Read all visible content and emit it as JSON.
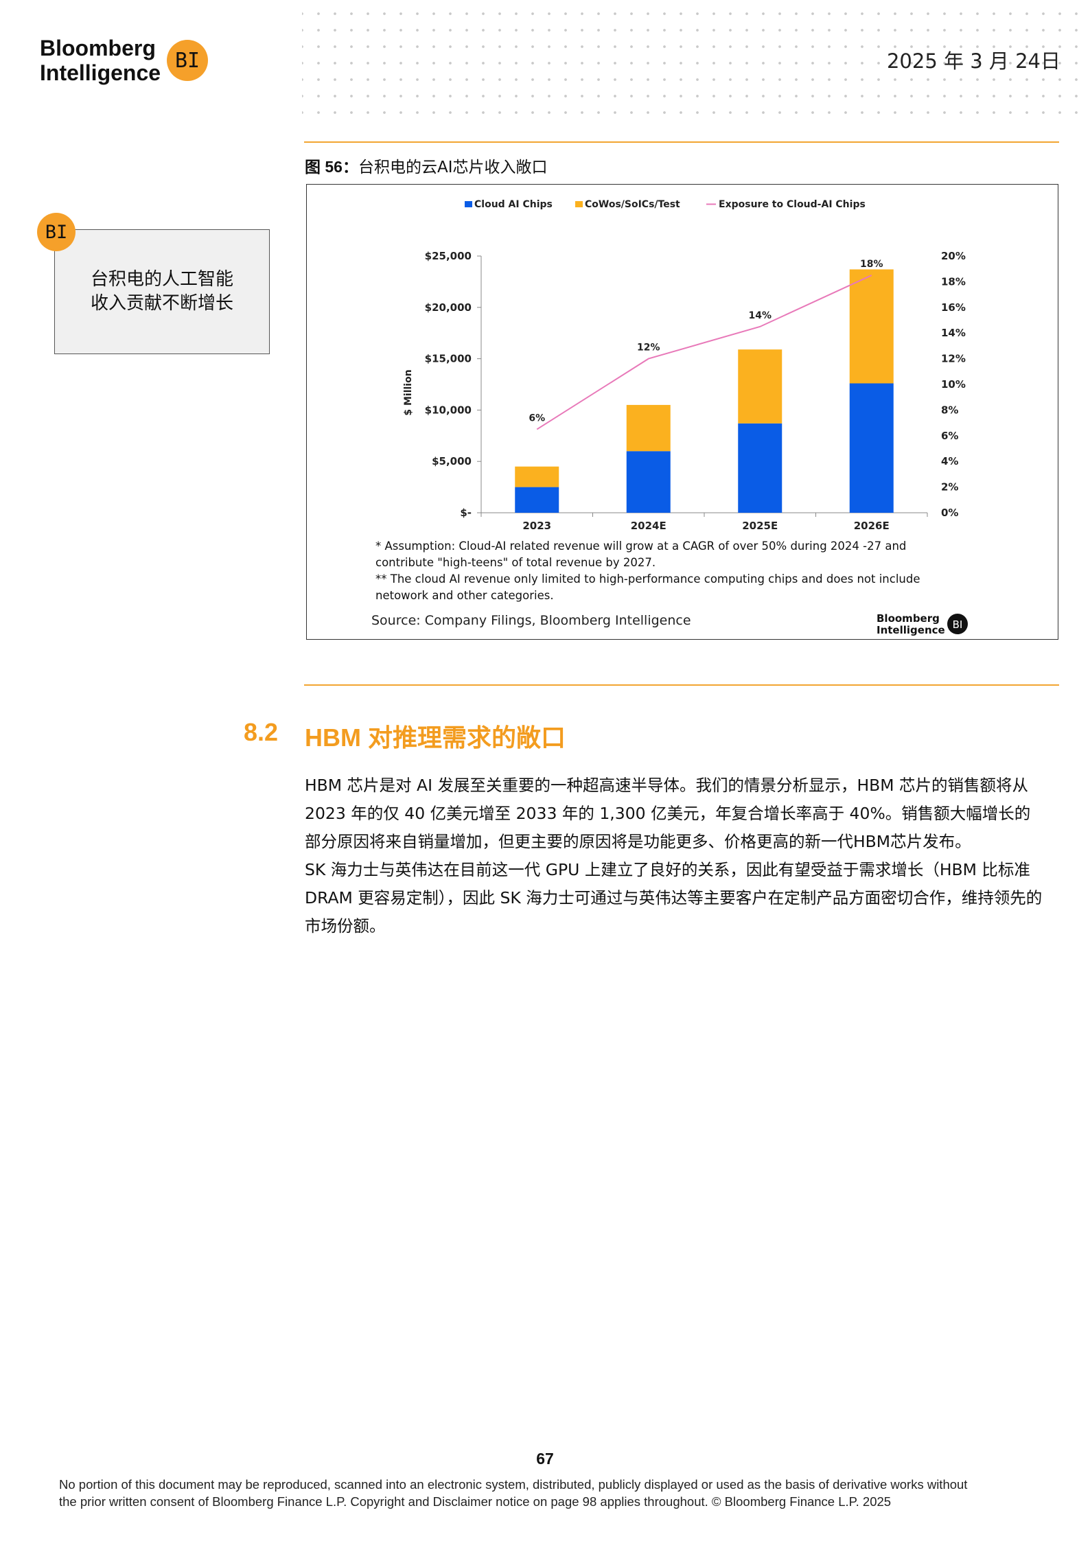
{
  "header": {
    "logo_line1": "Bloomberg",
    "logo_line2": "Intelligence",
    "logo_badge": "BI",
    "date": "2025 年 3 月 24日"
  },
  "callout": {
    "badge": "BI",
    "line1": "台积电的人工智能",
    "line2": "收入贡献不断增长"
  },
  "figure": {
    "caption_label": "图 56：",
    "caption_text": "台积电的云AI芯片收入敞口"
  },
  "chart_data": {
    "type": "bar",
    "stacked": true,
    "categories": [
      "2023",
      "2024E",
      "2025E",
      "2026E"
    ],
    "series": [
      {
        "name": "Cloud AI Chips",
        "type": "bar",
        "axis": "left",
        "color": "#0a5ce6",
        "values": [
          2500,
          6000,
          8700,
          12600
        ]
      },
      {
        "name": "CoWos/SoICs/Test",
        "type": "bar",
        "axis": "left",
        "color": "#fbb11f",
        "values": [
          2000,
          4500,
          7200,
          11100
        ]
      },
      {
        "name": "Exposure to Cloud-AI Chips",
        "type": "line",
        "axis": "right",
        "color": "#e879b9",
        "values": [
          6.5,
          12,
          14.5,
          18.5
        ]
      }
    ],
    "line_labels": [
      "6%",
      "12%",
      "14%",
      "18%"
    ],
    "ylabel": "$ Million",
    "ylim": [
      0,
      25000
    ],
    "y2lim": [
      0,
      20
    ],
    "y_ticks": [
      0,
      5000,
      10000,
      15000,
      20000,
      25000
    ],
    "y_tick_labels": [
      "$-",
      "$5,000",
      "$10,000",
      "$15,000",
      "$20,000",
      "$25,000"
    ],
    "y2_ticks": [
      0,
      2,
      4,
      6,
      8,
      10,
      12,
      14,
      16,
      18,
      20
    ],
    "y2_tick_labels": [
      "0%",
      "2%",
      "4%",
      "6%",
      "8%",
      "10%",
      "12%",
      "14%",
      "16%",
      "18%",
      "20%"
    ],
    "legend_position": "top",
    "grid": false,
    "note1_line1": "* Assumption: Cloud-AI related revenue will grow at a CAGR of over 50% during 2024 -27 and",
    "note1_line2": "contribute \"high-teens\" of total revenue by 2027.",
    "note2_line1": "** The cloud AI revenue only limited to high-performance computing chips and does not include",
    "note2_line2": "netowork and other categories.",
    "source": "Source: Company Filings, Bloomberg Intelligence",
    "brand_line1": "Bloomberg",
    "brand_line2": "Intelligence",
    "brand_badge": "BI",
    "colors": {
      "cloud": "#0a5ce6",
      "cowos": "#fbb11f",
      "exposure": "#e879b9"
    }
  },
  "section": {
    "number": "8.2",
    "title": "HBM 对推理需求的敞口",
    "paragraphs": [
      "HBM 芯片是对 AI 发展至关重要的一种超高速半导体。我们的情景分析显示，HBM 芯片的销售额将从 2023 年的仅 40 亿美元增至 2033 年的 1,300 亿美元，年复合增长率高于 40%。销售额大幅增长的部分原因将来自销量增加，但更主要的原因将是功能更多、价格更高的新一代HBM芯片发布。",
      "SK 海力士与英伟达在目前这一代 GPU 上建立了良好的关系，因此有望受益于需求增长（HBM 比标准 DRAM 更容易定制），因此 SK 海力士可通过与英伟达等主要客户在定制产品方面密切合作，维持领先的市场份额。"
    ]
  },
  "footer": {
    "page_number": "67",
    "disclaimer_line1": "No portion of this document may be reproduced, scanned into an electronic system, distributed, publicly displayed or used as the basis of derivative works without",
    "disclaimer_line2": "the prior written consent of Bloomberg Finance L.P. Copyright and Disclaimer notice on page 98 applies throughout. © Bloomberg Finance L.P. 2025"
  }
}
